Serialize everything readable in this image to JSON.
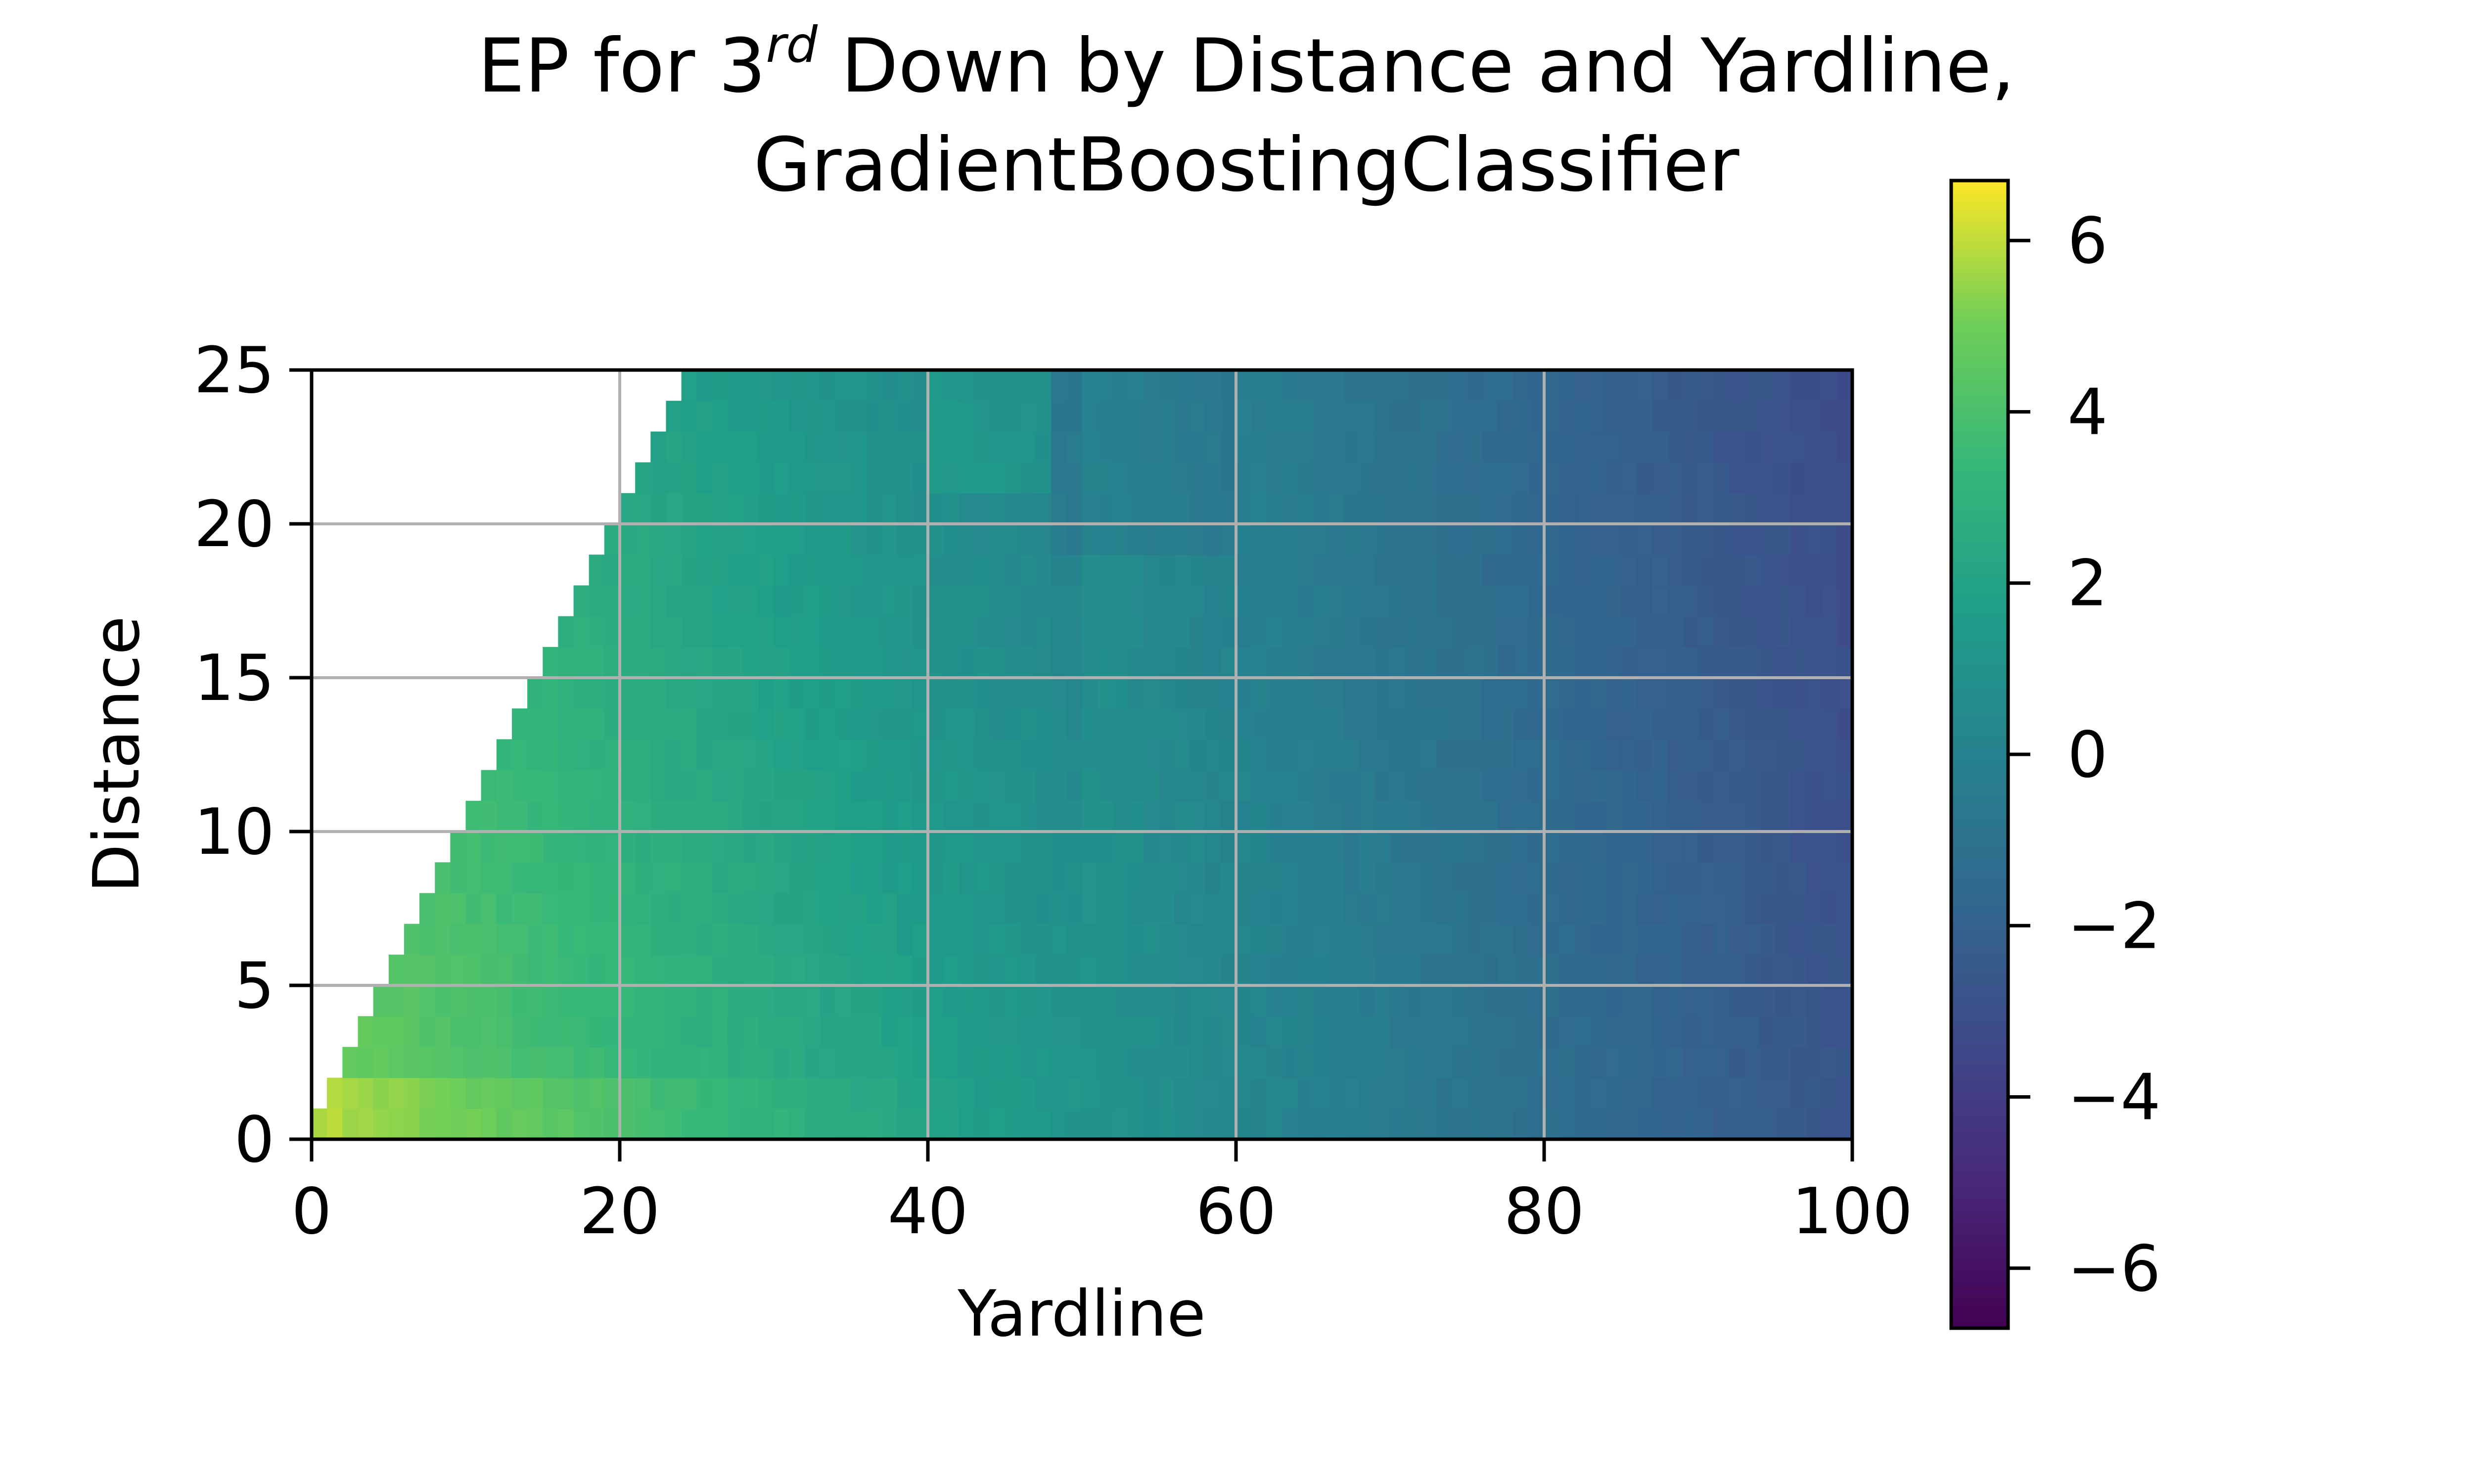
{
  "chart_data": {
    "type": "heatmap",
    "title_line1": {
      "prefix": "EP for 3",
      "superscript": "rd",
      "suffix": " Down by Distance and Yardline,"
    },
    "title_line2": "GradientBoostingClassifier",
    "xlabel": "Yardline",
    "ylabel": "Distance",
    "xlim": [
      0,
      100
    ],
    "ylim": [
      0,
      25
    ],
    "xticks": [
      0,
      20,
      40,
      60,
      80,
      100
    ],
    "xtick_labels": [
      "0",
      "20",
      "40",
      "60",
      "80",
      "100"
    ],
    "yticks": [
      0,
      5,
      10,
      15,
      20,
      25
    ],
    "ytick_labels": [
      "0",
      "5",
      "10",
      "15",
      "20",
      "25"
    ],
    "grid": true,
    "colormap": "viridis",
    "colorbar": {
      "vmin": -6.7,
      "vmax": 6.7,
      "ticks": [
        6,
        4,
        2,
        0,
        -2,
        -4,
        -6
      ],
      "tick_labels": [
        "6",
        "4",
        "2",
        "0",
        "−2",
        "−4",
        "−6"
      ]
    },
    "valid_region": "distance <= yardline",
    "value_description": "EP decreases roughly linearly with yardline from about 5.5 near yardline 0 to about -3 at yardline 100; short distances near the goal line reach about 6",
    "x_samples": [
      0,
      5,
      10,
      20,
      30,
      40,
      50,
      60,
      70,
      80,
      90,
      100
    ],
    "ep_at_distance_5": [
      4.2,
      3.6,
      3.2,
      2.4,
      1.8,
      1.1,
      0.6,
      0.0,
      -0.5,
      -1.2,
      -1.8,
      -2.5
    ],
    "ep_at_distance_20": [
      null,
      null,
      null,
      1.6,
      1.2,
      0.7,
      -0.5,
      -1.5,
      -1.8,
      -2.0,
      -2.6,
      -3.0
    ]
  }
}
